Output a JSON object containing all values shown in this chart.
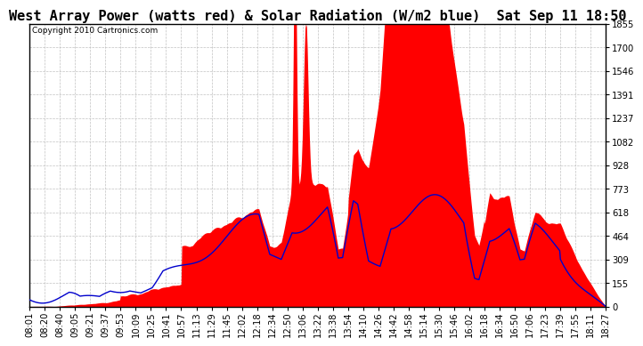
{
  "title": "West Array Power (watts red) & Solar Radiation (W/m2 blue)  Sat Sep 11 18:50",
  "copyright": "Copyright 2010 Cartronics.com",
  "y_max": 1854.9,
  "y_min": 0.0,
  "y_ticks": [
    0.0,
    154.6,
    309.2,
    463.7,
    618.3,
    772.9,
    927.5,
    1082.0,
    1236.6,
    1391.2,
    1545.8,
    1700.4,
    1854.9
  ],
  "x_labels": [
    "08:01",
    "08:20",
    "08:40",
    "09:05",
    "09:21",
    "09:37",
    "09:53",
    "10:09",
    "10:25",
    "10:41",
    "10:57",
    "11:13",
    "11:29",
    "11:45",
    "12:02",
    "12:18",
    "12:34",
    "12:50",
    "13:06",
    "13:22",
    "13:38",
    "13:54",
    "14:10",
    "14:26",
    "14:42",
    "14:58",
    "15:14",
    "15:30",
    "15:46",
    "16:02",
    "16:18",
    "16:34",
    "16:50",
    "17:06",
    "17:23",
    "17:39",
    "17:55",
    "18:11",
    "18:27"
  ],
  "background_color": "#ffffff",
  "plot_bg_color": "#ffffff",
  "grid_color": "#bbbbbb",
  "red_color": "#ff0000",
  "blue_color": "#0000cc",
  "title_fontsize": 11,
  "tick_fontsize": 7.2
}
